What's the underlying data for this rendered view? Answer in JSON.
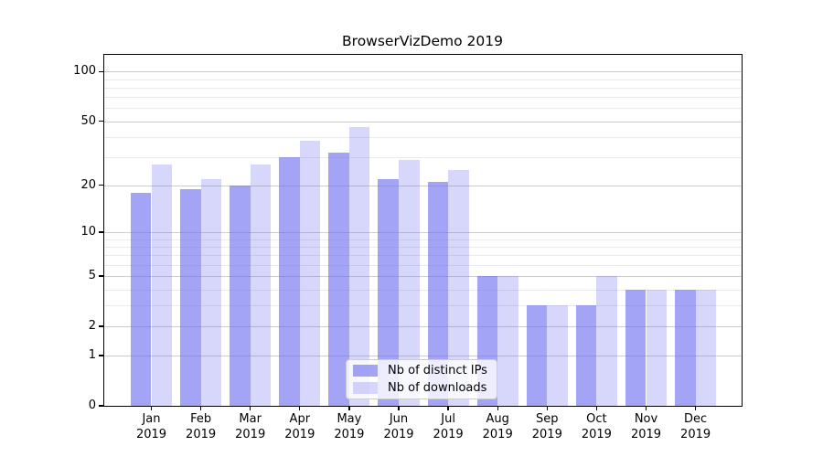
{
  "chart_data": {
    "type": "bar",
    "title": "BrowserVizDemo 2019",
    "categories": [
      "Jan 2019",
      "Feb 2019",
      "Mar 2019",
      "Apr 2019",
      "May 2019",
      "Jun 2019",
      "Jul 2019",
      "Aug 2019",
      "Sep 2019",
      "Oct 2019",
      "Nov 2019",
      "Dec 2019"
    ],
    "series": [
      {
        "name": "Nb of distinct IPs",
        "color": "rgba(108,108,242,0.62)",
        "values": [
          18,
          19,
          20,
          30,
          32,
          22,
          21,
          5,
          3,
          3,
          4,
          4
        ]
      },
      {
        "name": "Nb of downloads",
        "color": "rgba(108,108,242,0.27)",
        "values": [
          27,
          22,
          27,
          38,
          46,
          29,
          25,
          5,
          3,
          5,
          4,
          4
        ]
      }
    ],
    "y_axis": {
      "scale": "log10(1+x)",
      "tick_labels": [
        "0",
        "1",
        "2",
        "5",
        "10",
        "20",
        "50",
        "100"
      ],
      "tick_values": [
        0,
        1,
        2,
        5,
        10,
        20,
        50,
        100
      ],
      "minor_gridline_values": [
        3,
        4,
        6,
        7,
        8,
        9,
        30,
        40,
        60,
        70,
        80,
        90
      ],
      "ylim": [
        0,
        126
      ]
    },
    "x_axis": {
      "year_line": "2019"
    },
    "legend": {
      "position": "lower-center",
      "entries": [
        "Nb of distinct IPs",
        "Nb of downloads"
      ]
    },
    "grid": true,
    "colors": {
      "bar_dark": "rgba(108,108,242,0.62)",
      "bar_light": "rgba(108,108,242,0.27)",
      "grid_major": "#cccccc",
      "grid_minor": "#eaeaea",
      "axis": "#000000",
      "background": "#ffffff"
    }
  }
}
